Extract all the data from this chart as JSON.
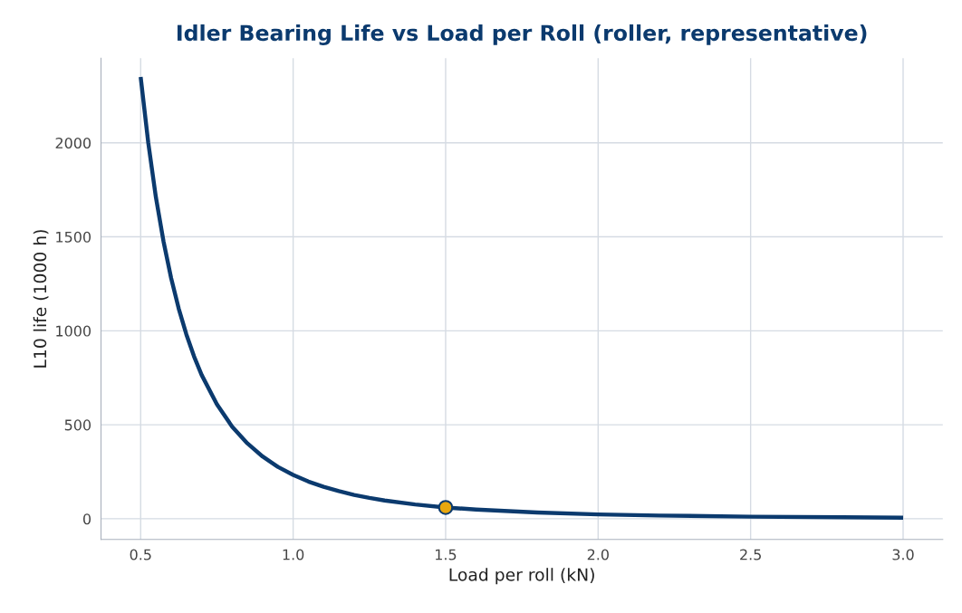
{
  "chart_data": {
    "type": "line",
    "title": "Idler Bearing Life vs Load per Roll (roller, representative)",
    "xlabel": "Load per roll (kN)",
    "ylabel": "L10 life (1000 h)",
    "series": [
      {
        "color": "#0b3a6e",
        "x": [
          0.5,
          0.525,
          0.55,
          0.575,
          0.6,
          0.625,
          0.65,
          0.675,
          0.7,
          0.75,
          0.8,
          0.85,
          0.9,
          0.95,
          1.0,
          1.05,
          1.1,
          1.15,
          1.2,
          1.25,
          1.3,
          1.4,
          1.5,
          1.6,
          1.8,
          2.0,
          2.2,
          2.5,
          2.8,
          3.0
        ],
        "values": [
          2350,
          2000,
          1710,
          1475,
          1280,
          1117,
          980,
          864,
          765,
          609,
          490,
          401,
          331,
          276,
          233,
          198,
          170,
          147,
          127,
          111,
          97,
          76,
          60,
          49,
          33,
          23,
          17,
          11,
          8,
          6
        ],
        "marker": "none"
      },
      {
        "type": "scatter",
        "color": "#e8a70f",
        "x": [
          1.5
        ],
        "values": [
          60
        ],
        "marker": "circle"
      }
    ],
    "xlim": [
      0.37,
      3.13
    ],
    "ylim": [
      -110,
      2450
    ],
    "xticks": [
      0.5,
      {
        "value": 1,
        "label": "1.0"
      },
      1.5,
      {
        "value": 2,
        "label": "2.0"
      },
      2.5,
      {
        "value": 3,
        "label": "3.0"
      }
    ],
    "yticks": [
      0,
      500,
      1000,
      1500,
      2000
    ],
    "grid": true,
    "legend": false
  }
}
